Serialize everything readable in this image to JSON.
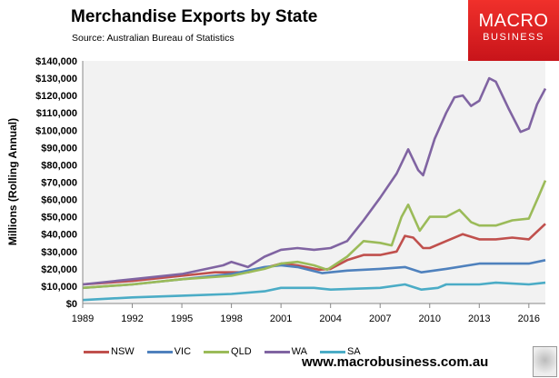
{
  "header": {
    "title": "Merchandise Exports by State",
    "source": "Source: Australian Bureau of Statistics"
  },
  "logo": {
    "line1": "MACRO",
    "line2": "BUSINESS",
    "color": "#e0201f"
  },
  "footer": {
    "url": "www.macrobusiness.com.au",
    "icon": "wolf-icon"
  },
  "chart_data": {
    "type": "line",
    "title": "Merchandise Exports by State",
    "ylabel": "Millions (Rolling Annual)",
    "xlabel": "",
    "xlim": [
      1989,
      2017
    ],
    "ylim": [
      0,
      140000
    ],
    "x_ticks": [
      "1989",
      "1992",
      "1995",
      "1998",
      "2001",
      "2004",
      "2007",
      "2010",
      "2013",
      "2016"
    ],
    "y_ticks": [
      "$0",
      "$10,000",
      "$20,000",
      "$30,000",
      "$40,000",
      "$50,000",
      "$60,000",
      "$70,000",
      "$80,000",
      "$90,000",
      "$100,000",
      "$110,000",
      "$120,000",
      "$130,000",
      "$140,000"
    ],
    "grid": false,
    "plot_background": "#f2f2f2",
    "legend_position": "bottom",
    "series": [
      {
        "name": "NSW",
        "color": "#c0504d",
        "points": [
          [
            1989,
            11000
          ],
          [
            1992,
            13000
          ],
          [
            1995,
            16000
          ],
          [
            1997,
            18000
          ],
          [
            1999,
            18000
          ],
          [
            2001,
            23000
          ],
          [
            2002,
            22000
          ],
          [
            2003.3,
            19500
          ],
          [
            2004,
            20000
          ],
          [
            2005,
            25000
          ],
          [
            2006,
            28000
          ],
          [
            2007,
            28000
          ],
          [
            2008,
            30000
          ],
          [
            2008.5,
            39000
          ],
          [
            2009,
            38000
          ],
          [
            2009.6,
            32000
          ],
          [
            2010,
            32000
          ],
          [
            2011,
            36000
          ],
          [
            2012,
            40000
          ],
          [
            2013,
            37000
          ],
          [
            2014,
            37000
          ],
          [
            2015,
            38000
          ],
          [
            2016,
            37000
          ],
          [
            2017,
            46000
          ]
        ]
      },
      {
        "name": "VIC",
        "color": "#4f81bd",
        "points": [
          [
            1989,
            9000
          ],
          [
            1992,
            11000
          ],
          [
            1995,
            14000
          ],
          [
            1998,
            17000
          ],
          [
            2000,
            21000
          ],
          [
            2001,
            22000
          ],
          [
            2002,
            21000
          ],
          [
            2003.5,
            17500
          ],
          [
            2005,
            19000
          ],
          [
            2007,
            20000
          ],
          [
            2008.5,
            21000
          ],
          [
            2009.5,
            18000
          ],
          [
            2011,
            20000
          ],
          [
            2013,
            23000
          ],
          [
            2016,
            23000
          ],
          [
            2017,
            25000
          ]
        ]
      },
      {
        "name": "QLD",
        "color": "#9bbb59",
        "points": [
          [
            1989,
            9000
          ],
          [
            1992,
            11000
          ],
          [
            1995,
            14000
          ],
          [
            1998,
            16000
          ],
          [
            2000,
            20000
          ],
          [
            2001,
            23000
          ],
          [
            2002,
            24000
          ],
          [
            2003,
            22000
          ],
          [
            2003.8,
            19500
          ],
          [
            2005,
            27000
          ],
          [
            2006,
            36000
          ],
          [
            2007,
            35000
          ],
          [
            2007.7,
            33500
          ],
          [
            2008.3,
            50000
          ],
          [
            2008.7,
            57000
          ],
          [
            2009.4,
            42000
          ],
          [
            2010,
            50000
          ],
          [
            2011,
            50000
          ],
          [
            2011.8,
            54000
          ],
          [
            2012.5,
            47000
          ],
          [
            2013,
            45000
          ],
          [
            2014,
            45000
          ],
          [
            2015,
            48000
          ],
          [
            2016,
            49000
          ],
          [
            2016.6,
            62000
          ],
          [
            2017,
            71000
          ]
        ]
      },
      {
        "name": "WA",
        "color": "#8064a2",
        "points": [
          [
            1989,
            11000
          ],
          [
            1992,
            14000
          ],
          [
            1995,
            17000
          ],
          [
            1997.5,
            22000
          ],
          [
            1998,
            24000
          ],
          [
            1999,
            21000
          ],
          [
            2000,
            27000
          ],
          [
            2001,
            31000
          ],
          [
            2002,
            32000
          ],
          [
            2003,
            31000
          ],
          [
            2004,
            32000
          ],
          [
            2005,
            36000
          ],
          [
            2006,
            48000
          ],
          [
            2007,
            61000
          ],
          [
            2008,
            75000
          ],
          [
            2008.7,
            89000
          ],
          [
            2009.3,
            77000
          ],
          [
            2009.6,
            74000
          ],
          [
            2010.3,
            95000
          ],
          [
            2011,
            110000
          ],
          [
            2011.5,
            119000
          ],
          [
            2012,
            120000
          ],
          [
            2012.5,
            114000
          ],
          [
            2013,
            117000
          ],
          [
            2013.6,
            130000
          ],
          [
            2014,
            128000
          ],
          [
            2014.8,
            112000
          ],
          [
            2015.5,
            99000
          ],
          [
            2016,
            101000
          ],
          [
            2016.5,
            115000
          ],
          [
            2017,
            124000
          ]
        ]
      },
      {
        "name": "SA",
        "color": "#4bacc6",
        "points": [
          [
            1989,
            2000
          ],
          [
            1992,
            3500
          ],
          [
            1995,
            4500
          ],
          [
            1998,
            5500
          ],
          [
            2000,
            7000
          ],
          [
            2001,
            9000
          ],
          [
            2003,
            9000
          ],
          [
            2004,
            8000
          ],
          [
            2007,
            9000
          ],
          [
            2008.5,
            11000
          ],
          [
            2009.5,
            8000
          ],
          [
            2010.5,
            9000
          ],
          [
            2011,
            11000
          ],
          [
            2013,
            11000
          ],
          [
            2014,
            12000
          ],
          [
            2016,
            11000
          ],
          [
            2017,
            12000
          ]
        ]
      }
    ]
  }
}
